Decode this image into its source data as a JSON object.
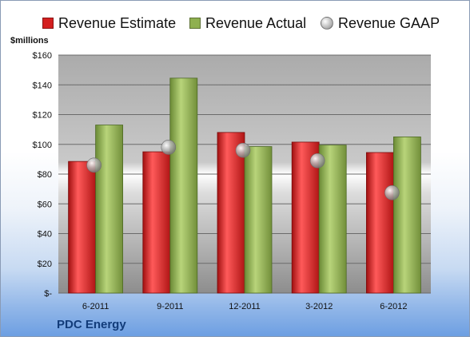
{
  "chart_data": {
    "type": "bar",
    "title": "",
    "ylabel": "$millions",
    "xlabel": "",
    "ylim": [
      0,
      160
    ],
    "yticks": [
      0,
      20,
      40,
      60,
      80,
      100,
      120,
      140,
      160
    ],
    "ytick_labels": [
      "$-",
      "$20",
      "$40",
      "$60",
      "$80",
      "$100",
      "$120",
      "$140",
      "$160"
    ],
    "categories": [
      "6-2011",
      "9-2011",
      "12-2011",
      "3-2012",
      "6-2012"
    ],
    "series": [
      {
        "name": "Revenue Estimate",
        "kind": "bar",
        "color": "#d42020",
        "values": [
          88.5,
          95,
          108,
          101.5,
          94.5
        ]
      },
      {
        "name": "Revenue Actual",
        "kind": "bar",
        "color": "#8fb050",
        "values": [
          113,
          144.5,
          98.5,
          99.5,
          105
        ]
      },
      {
        "name": "Revenue GAAP",
        "kind": "marker",
        "color": "#b8b8b8",
        "values": [
          86,
          98,
          96,
          89,
          67.5
        ]
      }
    ],
    "legend_position": "top",
    "grid": true,
    "company": "PDC Energy"
  }
}
